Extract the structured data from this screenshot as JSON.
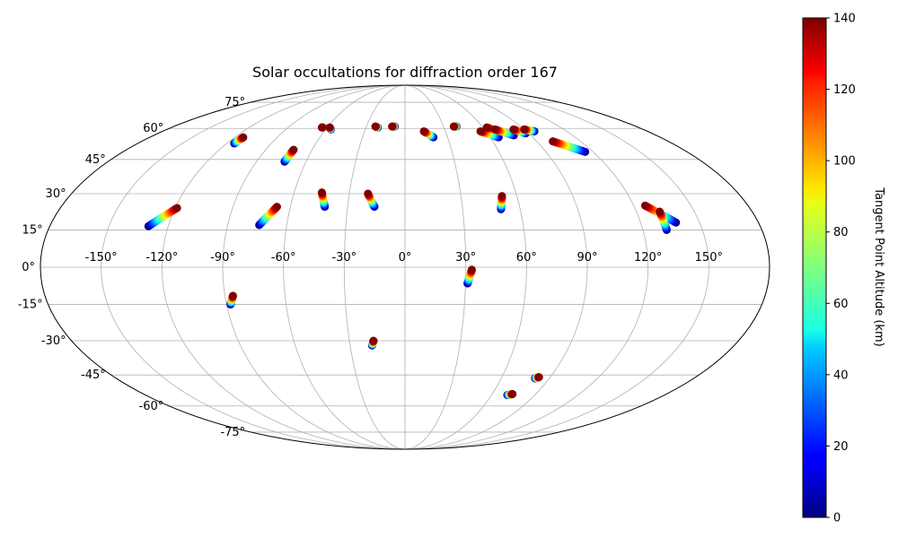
{
  "chart_data": {
    "type": "scatter",
    "projection": "mollweide",
    "title": "Solar occultations for diffraction order 167",
    "grid": true,
    "longitude_ticks": [
      {
        "value": -150,
        "label": "-150°"
      },
      {
        "value": -120,
        "label": "-120°"
      },
      {
        "value": -90,
        "label": "-90°"
      },
      {
        "value": -60,
        "label": "-60°"
      },
      {
        "value": -30,
        "label": "-30°"
      },
      {
        "value": 0,
        "label": "0°"
      },
      {
        "value": 30,
        "label": "30°"
      },
      {
        "value": 60,
        "label": "60°"
      },
      {
        "value": 90,
        "label": "90°"
      },
      {
        "value": 120,
        "label": "120°"
      },
      {
        "value": 150,
        "label": "150°"
      }
    ],
    "latitude_ticks": [
      {
        "value": 75,
        "label": "75°"
      },
      {
        "value": 60,
        "label": "60°"
      },
      {
        "value": 45,
        "label": "45°"
      },
      {
        "value": 30,
        "label": "30°"
      },
      {
        "value": 15,
        "label": "15°"
      },
      {
        "value": 0,
        "label": "0°"
      },
      {
        "value": -15,
        "label": "-15°"
      },
      {
        "value": -30,
        "label": "-30°"
      },
      {
        "value": -45,
        "label": "-45°"
      },
      {
        "value": -60,
        "label": "-60°"
      },
      {
        "value": -75,
        "label": "-75°"
      }
    ],
    "colorbar": {
      "label": "Tangent Point Altitude (km)",
      "colormap": "jet",
      "range": [
        0,
        140
      ],
      "ticks": [
        {
          "value": 0,
          "label": "0"
        },
        {
          "value": 20,
          "label": "20"
        },
        {
          "value": 40,
          "label": "40"
        },
        {
          "value": 60,
          "label": "60"
        },
        {
          "value": 80,
          "label": "80"
        },
        {
          "value": 100,
          "label": "100"
        },
        {
          "value": 120,
          "label": "120"
        },
        {
          "value": 140,
          "label": "140"
        }
      ]
    },
    "occultations": [
      {
        "lon_top": -119,
        "lat_top": 24.0,
        "lon_bottom": -130,
        "lat_bottom": 16.5
      },
      {
        "lon_top": -114,
        "lat_top": 55.5,
        "lon_bottom": -115,
        "lat_bottom": 52.5
      },
      {
        "lon_top": -67,
        "lat_top": 24.5,
        "lon_bottom": -74,
        "lat_bottom": 17.0
      },
      {
        "lon_top": -72,
        "lat_top": 49.5,
        "lon_bottom": -73,
        "lat_bottom": 44.0
      },
      {
        "lon_top": -64,
        "lat_top": 60.5,
        "lon_bottom": -63,
        "lat_bottom": 60.5
      },
      {
        "lon_top": -58,
        "lat_top": 60.5,
        "lon_bottom": -56,
        "lat_bottom": 59.5
      },
      {
        "lon_top": -45,
        "lat_top": 30.5,
        "lon_bottom": -42,
        "lat_bottom": 24.5
      },
      {
        "lon_top": -20,
        "lat_top": 30.0,
        "lon_bottom": -16,
        "lat_bottom": 24.5
      },
      {
        "lon_top": -23,
        "lat_top": 61.0,
        "lon_bottom": -21,
        "lat_bottom": 60.5
      },
      {
        "lon_top": -10,
        "lat_top": 61.0,
        "lon_bottom": -8,
        "lat_bottom": 61.0
      },
      {
        "lon_top": 14,
        "lat_top": 58.5,
        "lon_bottom": 20,
        "lat_bottom": 55.5
      },
      {
        "lon_top": 38,
        "lat_top": 61.0,
        "lon_bottom": 40,
        "lat_bottom": 61.0
      },
      {
        "lon_top": 52,
        "lat_top": 29.0,
        "lon_bottom": 50,
        "lat_bottom": 23.5
      },
      {
        "lon_top": 56,
        "lat_top": 58.5,
        "lon_bottom": 66,
        "lat_bottom": 55.5
      },
      {
        "lon_top": 63,
        "lat_top": 60.5,
        "lon_bottom": 72,
        "lat_bottom": 58.0
      },
      {
        "lon_top": 68,
        "lat_top": 59.5,
        "lon_bottom": 78,
        "lat_bottom": 56.5
      },
      {
        "lon_top": 82,
        "lat_top": 59.5,
        "lon_bottom": 88,
        "lat_bottom": 57.5
      },
      {
        "lon_top": 90,
        "lat_top": 59.5,
        "lon_bottom": 96,
        "lat_bottom": 58.5
      },
      {
        "lon_top": 101,
        "lat_top": 53.5,
        "lon_bottom": 115,
        "lat_bottom": 48.5
      },
      {
        "lon_top": 126,
        "lat_top": 25.0,
        "lon_bottom": 138,
        "lat_bottom": 18.0
      },
      {
        "lon_top": 132,
        "lat_top": 22.5,
        "lon_bottom": 132,
        "lat_bottom": 15.0
      },
      {
        "lon_top": 33,
        "lat_top": -1.0,
        "lon_bottom": 31,
        "lat_bottom": -6.5
      },
      {
        "lon_top": -86,
        "lat_top": -11.5,
        "lon_bottom": -88,
        "lat_bottom": -15.0
      },
      {
        "lon_top": -17,
        "lat_top": -30.0,
        "lon_bottom": -18,
        "lat_bottom": -32.0
      },
      {
        "lon_top": 83,
        "lat_top": -46.0,
        "lon_bottom": 81,
        "lat_bottom": -46.5
      },
      {
        "lon_top": 74,
        "lat_top": -54.0,
        "lon_bottom": 71,
        "lat_bottom": -54.5
      }
    ]
  }
}
